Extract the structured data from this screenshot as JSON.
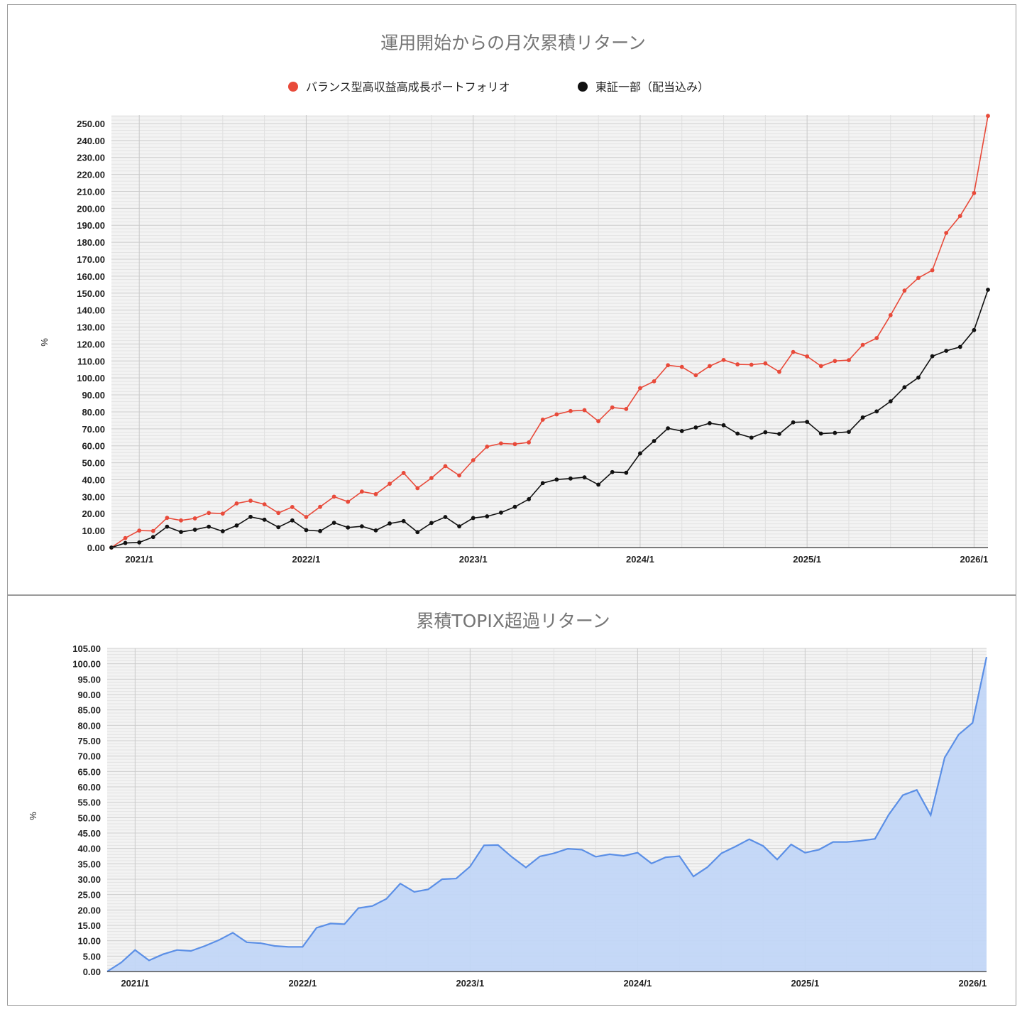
{
  "chart_data": [
    {
      "type": "line",
      "title": "運用開始からの月次累積リターン",
      "ylabel": "%",
      "ylim": [
        0,
        255
      ],
      "ytick_step": 10,
      "x_range": [
        "2020-11",
        "2026-02"
      ],
      "xticks": [
        "2021/1",
        "2022/1",
        "2023/1",
        "2024/1",
        "2025/1",
        "2026/1"
      ],
      "legend_position": "top",
      "grid": true,
      "x": [
        "2020-11",
        "2020-12",
        "2021-01",
        "2021-02",
        "2021-03",
        "2021-04",
        "2021-05",
        "2021-06",
        "2021-07",
        "2021-08",
        "2021-09",
        "2021-10",
        "2021-11",
        "2021-12",
        "2022-01",
        "2022-02",
        "2022-03",
        "2022-04",
        "2022-05",
        "2022-06",
        "2022-07",
        "2022-08",
        "2022-09",
        "2022-10",
        "2022-11",
        "2022-12",
        "2023-01",
        "2023-02",
        "2023-03",
        "2023-04",
        "2023-05",
        "2023-06",
        "2023-07",
        "2023-08",
        "2023-09",
        "2023-10",
        "2023-11",
        "2023-12",
        "2024-01",
        "2024-02",
        "2024-03",
        "2024-04",
        "2024-05",
        "2024-06",
        "2024-07",
        "2024-08",
        "2024-09",
        "2024-10",
        "2024-11",
        "2024-12",
        "2025-01",
        "2025-02",
        "2025-03",
        "2025-04",
        "2025-05",
        "2025-06",
        "2025-07",
        "2025-08",
        "2025-09",
        "2025-10",
        "2025-11",
        "2025-12",
        "2026-01",
        "2026-02"
      ],
      "series": [
        {
          "name": "バランス型高収益高成長ポートフォリオ",
          "color": "#e84a3a",
          "values": [
            0,
            5.6,
            10,
            9.8,
            17.5,
            16,
            17.2,
            20.4,
            20,
            26,
            27.6,
            25.5,
            20.4,
            23.9,
            18,
            24,
            30,
            27,
            33,
            31.5,
            37.6,
            44,
            35,
            41,
            48,
            42.5,
            51.5,
            59.5,
            61.4,
            61,
            62,
            75.4,
            78.5,
            80.5,
            81,
            74.5,
            82.6,
            81.7,
            94,
            98,
            107.5,
            106.5,
            101.6,
            107,
            110.6,
            108,
            107.8,
            108.6,
            103.6,
            115.3,
            112.7,
            107,
            110,
            110.5,
            119.5,
            123.5,
            137,
            151.5,
            159,
            163.5,
            185.5,
            195.5,
            209,
            254.5
          ]
        },
        {
          "name": "東証一部（配当込み）",
          "color": "#111111",
          "values": [
            0,
            2.7,
            3,
            6.2,
            12.3,
            9.2,
            10.5,
            12.3,
            9.6,
            13,
            18.1,
            16.4,
            12,
            16,
            10.3,
            9.7,
            14.6,
            11.8,
            12.5,
            10.1,
            14.2,
            15.6,
            9.1,
            14.5,
            18,
            12.5,
            17.4,
            18.4,
            20.6,
            24,
            28.5,
            38,
            40.1,
            40.7,
            41.4,
            37.1,
            44.5,
            44.1,
            55.5,
            62.8,
            70.3,
            68.7,
            70.8,
            73.3,
            72.1,
            67.2,
            64.8,
            68,
            67,
            73.8,
            74.1,
            67.2,
            67.6,
            68.2,
            76.7,
            80.3,
            86.2,
            94.5,
            100.2,
            112.8,
            116,
            118.3,
            128.2,
            152
          ]
        }
      ]
    },
    {
      "type": "area",
      "title": "累積TOPIX超過リターン",
      "ylabel": "%",
      "ylim": [
        0,
        105
      ],
      "ytick_step": 5,
      "x_range": [
        "2020-11",
        "2026-02"
      ],
      "xticks": [
        "2021/1",
        "2022/1",
        "2023/1",
        "2024/1",
        "2025/1",
        "2026/1"
      ],
      "grid": true,
      "color": "#5b8fe6",
      "fill": "#c2d6f7",
      "x": [
        "2020-11",
        "2020-12",
        "2021-01",
        "2021-02",
        "2021-03",
        "2021-04",
        "2021-05",
        "2021-06",
        "2021-07",
        "2021-08",
        "2021-09",
        "2021-10",
        "2021-11",
        "2021-12",
        "2022-01",
        "2022-02",
        "2022-03",
        "2022-04",
        "2022-05",
        "2022-06",
        "2022-07",
        "2022-08",
        "2022-09",
        "2022-10",
        "2022-11",
        "2022-12",
        "2023-01",
        "2023-02",
        "2023-03",
        "2023-04",
        "2023-05",
        "2023-06",
        "2023-07",
        "2023-08",
        "2023-09",
        "2023-10",
        "2023-11",
        "2023-12",
        "2024-01",
        "2024-02",
        "2024-03",
        "2024-04",
        "2024-05",
        "2024-06",
        "2024-07",
        "2024-08",
        "2024-09",
        "2024-10",
        "2024-11",
        "2024-12",
        "2025-01",
        "2025-02",
        "2025-03",
        "2025-04",
        "2025-05",
        "2025-06",
        "2025-07",
        "2025-08",
        "2025-09",
        "2025-10",
        "2025-11",
        "2025-12",
        "2026-01",
        "2026-02"
      ],
      "values": [
        0,
        2.9,
        7,
        3.6,
        5.6,
        7,
        6.7,
        8.3,
        10.2,
        12.6,
        9.5,
        9.2,
        8.3,
        8,
        8,
        14.2,
        15.6,
        15.4,
        20.6,
        21.3,
        23.6,
        28.6,
        25.9,
        26.7,
        30,
        30.2,
        34.1,
        41,
        41.1,
        37.2,
        33.8,
        37.4,
        38.4,
        39.9,
        39.6,
        37.3,
        38.1,
        37.6,
        38.6,
        35.1,
        37.1,
        37.5,
        30.9,
        33.9,
        38.4,
        40.6,
        43,
        40.8,
        36.4,
        41.3,
        38.6,
        39.6,
        42.1,
        42.1,
        42.5,
        43.1,
        51,
        57.3,
        59,
        50.8,
        69.5,
        77,
        80.8,
        102.2
      ]
    }
  ]
}
